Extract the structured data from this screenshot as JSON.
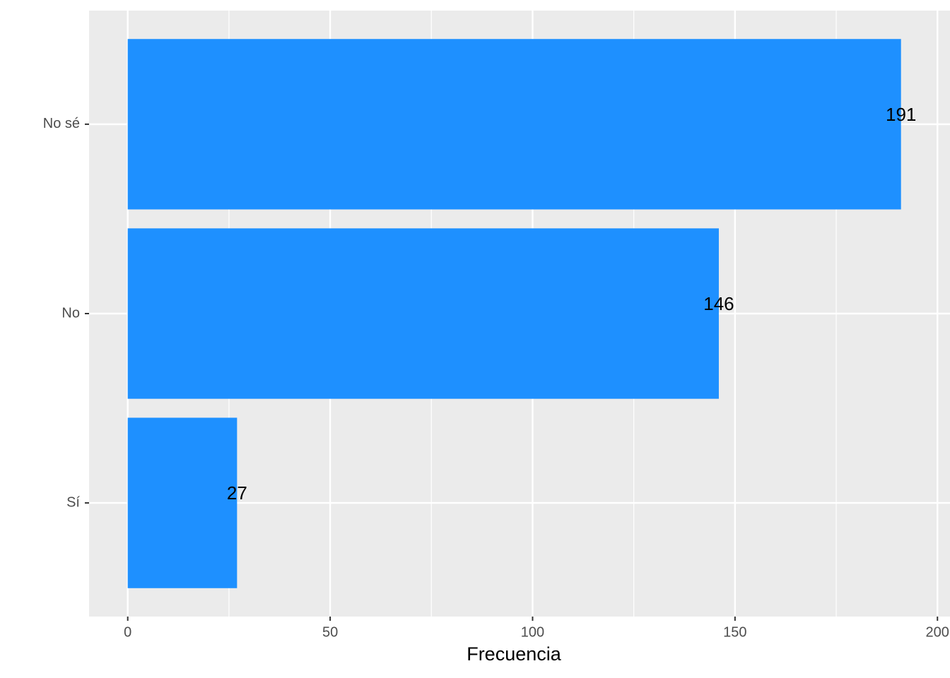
{
  "chart_data": {
    "type": "bar",
    "orientation": "horizontal",
    "categories": [
      "No sé",
      "No",
      "Sí"
    ],
    "values": [
      191,
      146,
      27
    ],
    "color": "#1e90ff",
    "x_label": "Frecuencia",
    "xlim": [
      -9.55,
      203.1
    ],
    "xticks": [
      0,
      50,
      100,
      150,
      200
    ],
    "x_minor_grid": [
      25,
      75,
      125,
      175
    ],
    "grid": true
  }
}
